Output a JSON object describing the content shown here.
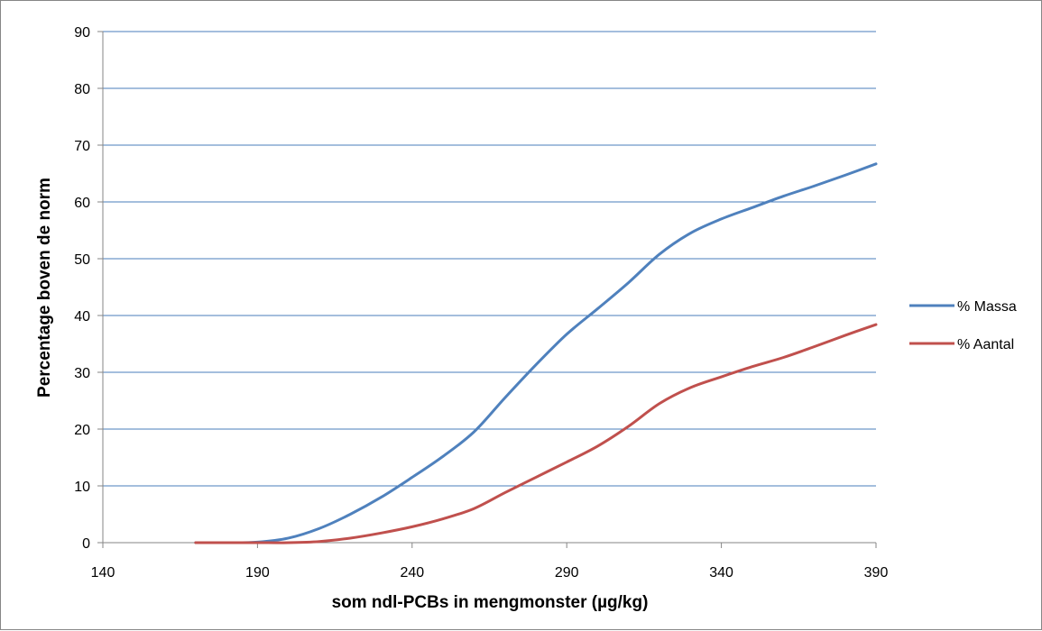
{
  "chart_data": {
    "type": "line",
    "xlabel": "som ndl-PCBs in mengmonster (µg/kg)",
    "ylabel": "Percentage boven de norm",
    "xlim": [
      140,
      390
    ],
    "ylim": [
      0,
      90
    ],
    "x_ticks": [
      140,
      190,
      240,
      290,
      340,
      390
    ],
    "y_ticks": [
      0,
      10,
      20,
      30,
      40,
      50,
      60,
      70,
      80,
      90
    ],
    "grid": "horizontal",
    "legend_position": "right",
    "series": [
      {
        "name": "% Massa",
        "color": "#4F81BD",
        "x": [
          170,
          180,
          190,
          200,
          210,
          220,
          230,
          240,
          250,
          260,
          270,
          280,
          290,
          300,
          310,
          320,
          330,
          340,
          350,
          360,
          370,
          380,
          390
        ],
        "y": [
          0,
          0,
          0.1,
          0.8,
          2.5,
          5,
          8,
          11.5,
          15.2,
          19.5,
          25.5,
          31.3,
          36.7,
          41.2,
          45.8,
          50.8,
          54.5,
          57,
          59,
          61,
          62.8,
          64.7,
          66.7
        ]
      },
      {
        "name": "% Aantal",
        "color": "#C0504D",
        "x": [
          170,
          180,
          190,
          200,
          210,
          220,
          230,
          240,
          250,
          260,
          270,
          280,
          290,
          300,
          310,
          320,
          330,
          340,
          350,
          360,
          370,
          380,
          390
        ],
        "y": [
          0,
          0,
          0,
          0,
          0.2,
          0.8,
          1.7,
          2.8,
          4.2,
          6,
          8.8,
          11.5,
          14.2,
          17,
          20.5,
          24.5,
          27.3,
          29.2,
          31,
          32.6,
          34.5,
          36.5,
          38.4
        ]
      }
    ]
  }
}
